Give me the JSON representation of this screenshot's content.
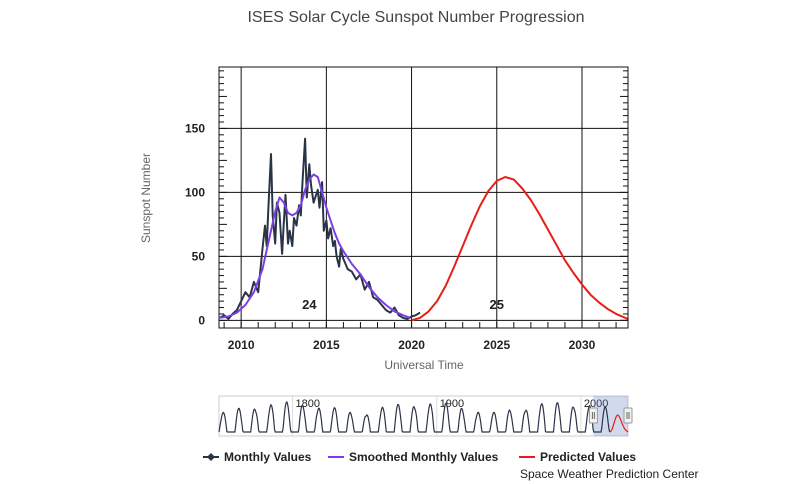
{
  "chart_data": {
    "type": "line",
    "title": "ISES Solar Cycle Sunspot Number Progression",
    "xlabel": "Universal Time",
    "ylabel": "Sunspot Number",
    "xlim": [
      2008.7,
      2032.7
    ],
    "ylim": [
      -6,
      198
    ],
    "x_ticks": [
      "2010",
      "2015",
      "2020",
      "2025",
      "2030"
    ],
    "y_ticks": [
      "0",
      "50",
      "100",
      "150"
    ],
    "grid": true,
    "legend_position": "bottom",
    "cycle_labels": [
      {
        "text": "24",
        "x": 2014.0,
        "y": 4
      },
      {
        "text": "25",
        "x": 2025.0,
        "y": 4
      }
    ],
    "series": [
      {
        "name": "Monthly Values",
        "color": "#2a3447",
        "x": [
          2008.75,
          2009.0,
          2009.25,
          2009.5,
          2009.75,
          2010.0,
          2010.25,
          2010.5,
          2010.75,
          2011.0,
          2011.25,
          2011.4,
          2011.5,
          2011.6,
          2011.75,
          2011.85,
          2012.0,
          2012.1,
          2012.25,
          2012.4,
          2012.5,
          2012.6,
          2012.75,
          2012.85,
          2013.0,
          2013.1,
          2013.25,
          2013.4,
          2013.5,
          2013.6,
          2013.75,
          2013.85,
          2014.0,
          2014.1,
          2014.25,
          2014.4,
          2014.5,
          2014.6,
          2014.75,
          2014.85,
          2015.0,
          2015.1,
          2015.25,
          2015.4,
          2015.5,
          2015.6,
          2015.75,
          2015.85,
          2016.0,
          2016.25,
          2016.5,
          2016.75,
          2017.0,
          2017.25,
          2017.5,
          2017.75,
          2018.0,
          2018.25,
          2018.5,
          2018.75,
          2019.0,
          2019.25,
          2019.5,
          2019.75,
          2020.0,
          2020.25,
          2020.5
        ],
        "values": [
          2,
          4,
          1,
          5,
          8,
          15,
          22,
          18,
          30,
          22,
          56,
          74,
          58,
          88,
          130,
          82,
          60,
          92,
          84,
          52,
          76,
          98,
          60,
          70,
          58,
          80,
          74,
          90,
          82,
          108,
          142,
          96,
          122,
          106,
          92,
          98,
          102,
          88,
          108,
          70,
          78,
          64,
          72,
          58,
          62,
          50,
          42,
          56,
          48,
          40,
          38,
          32,
          36,
          24,
          30,
          18,
          16,
          12,
          8,
          6,
          10,
          4,
          2,
          1,
          3,
          4,
          6
        ]
      },
      {
        "name": "Smoothed Monthly Values",
        "color": "#7b3fe4",
        "x": [
          2008.75,
          2009.25,
          2009.75,
          2010.25,
          2010.75,
          2011.25,
          2011.5,
          2011.75,
          2012.0,
          2012.25,
          2012.5,
          2012.75,
          2013.0,
          2013.25,
          2013.5,
          2013.75,
          2014.0,
          2014.25,
          2014.5,
          2014.75,
          2015.0,
          2015.25,
          2015.5,
          2015.75,
          2016.0,
          2016.5,
          2017.0,
          2017.5,
          2018.0,
          2018.5,
          2019.0,
          2019.5,
          2019.9
        ],
        "values": [
          2,
          3,
          6,
          12,
          22,
          40,
          55,
          70,
          85,
          96,
          92,
          84,
          82,
          84,
          90,
          102,
          110,
          114,
          112,
          100,
          88,
          78,
          68,
          60,
          54,
          44,
          36,
          26,
          18,
          12,
          7,
          4,
          2
        ]
      },
      {
        "name": "Predicted Values",
        "color": "#e81e16",
        "x": [
          2020.0,
          2020.5,
          2021.0,
          2021.5,
          2022.0,
          2022.5,
          2023.0,
          2023.5,
          2024.0,
          2024.5,
          2025.0,
          2025.5,
          2026.0,
          2026.5,
          2027.0,
          2027.5,
          2028.0,
          2028.5,
          2029.0,
          2029.5,
          2030.0,
          2030.5,
          2031.0,
          2031.5,
          2032.0,
          2032.7
        ],
        "values": [
          0,
          2,
          7,
          15,
          27,
          42,
          58,
          74,
          89,
          101,
          109,
          112,
          110,
          103,
          94,
          83,
          71,
          59,
          47,
          37,
          28,
          20,
          14,
          9,
          5,
          1
        ]
      }
    ],
    "navigator": {
      "x_ticks": [
        "1800",
        "1900",
        "2000"
      ]
    }
  },
  "credit": "Space Weather Prediction Center"
}
